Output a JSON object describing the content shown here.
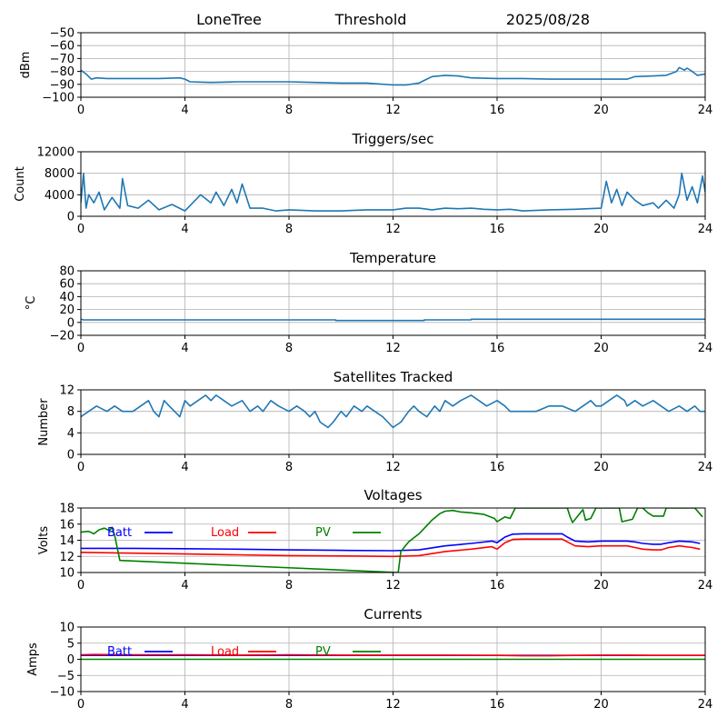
{
  "header": {
    "station": "LoneTree",
    "mode": "Threshold",
    "date": "2025/08/28"
  },
  "colors": {
    "series": "#1f77b4",
    "batt": "#0000ff",
    "load": "#ff0000",
    "pv": "#008000",
    "grid": "#b0b0b0",
    "axis": "#000000"
  },
  "chart_data": [
    {
      "type": "line",
      "title": "",
      "xlabel": "",
      "ylabel": "dBm",
      "xlim": [
        0,
        24
      ],
      "ylim": [
        -100,
        -50
      ],
      "xticks": [
        0,
        4,
        8,
        12,
        16,
        20,
        24
      ],
      "yticks": [
        -100,
        -90,
        -80,
        -70,
        -60,
        -50
      ],
      "grid": true,
      "series": [
        {
          "color": "#1f77b4",
          "x": [
            0,
            0.2,
            0.4,
            0.6,
            1,
            2,
            3,
            3.8,
            4,
            4.2,
            5,
            6,
            7,
            8,
            9,
            10,
            11,
            12,
            12.5,
            13,
            13.2,
            13.5,
            14,
            14.5,
            15,
            16,
            17,
            18,
            19,
            20,
            21,
            21.3,
            22,
            22.5,
            22.9,
            23,
            23.2,
            23.3,
            23.5,
            23.7,
            24
          ],
          "y": [
            -79,
            -82,
            -86,
            -85,
            -85.5,
            -85.5,
            -85.5,
            -85,
            -86,
            -88,
            -88.5,
            -88,
            -88,
            -88,
            -88.5,
            -89,
            -89,
            -90.5,
            -90.5,
            -89,
            -87,
            -84,
            -83,
            -83.5,
            -85,
            -85.5,
            -85.5,
            -86,
            -86,
            -86,
            -86,
            -84,
            -83.5,
            -83,
            -80,
            -77,
            -79,
            -77.5,
            -80,
            -83,
            -82
          ]
        }
      ]
    },
    {
      "type": "line",
      "title": "Triggers/sec",
      "xlabel": "",
      "ylabel": "Count",
      "xlim": [
        0,
        24
      ],
      "ylim": [
        0,
        12000
      ],
      "xticks": [
        0,
        4,
        8,
        12,
        16,
        20,
        24
      ],
      "yticks": [
        0,
        4000,
        8000,
        12000
      ],
      "grid": true,
      "series": [
        {
          "color": "#1f77b4",
          "x": [
            0,
            0.1,
            0.2,
            0.3,
            0.5,
            0.7,
            0.9,
            1.2,
            1.5,
            1.6,
            1.8,
            2.2,
            2.6,
            3,
            3.5,
            4,
            4.3,
            4.6,
            5,
            5.2,
            5.5,
            5.8,
            6,
            6.2,
            6.5,
            7,
            7.5,
            8,
            9,
            10,
            11,
            12,
            12.5,
            13,
            13.5,
            14,
            14.5,
            15,
            15.5,
            16,
            16.5,
            17,
            18,
            19,
            20,
            20.1,
            20.2,
            20.4,
            20.6,
            20.8,
            21,
            21.3,
            21.6,
            22,
            22.2,
            22.5,
            22.8,
            23,
            23.1,
            23.3,
            23.5,
            23.7,
            23.9,
            24
          ],
          "y": [
            2500,
            8000,
            1500,
            4000,
            2500,
            4500,
            1200,
            3500,
            1500,
            7000,
            2000,
            1500,
            3000,
            1200,
            2200,
            1000,
            2500,
            4000,
            2500,
            4500,
            2000,
            5000,
            2500,
            6000,
            1500,
            1500,
            1000,
            1200,
            1000,
            1000,
            1200,
            1200,
            1500,
            1500,
            1200,
            1500,
            1400,
            1500,
            1300,
            1200,
            1300,
            1000,
            1200,
            1300,
            1500,
            4000,
            6500,
            2500,
            5000,
            2000,
            4500,
            3000,
            2000,
            2500,
            1500,
            3000,
            1500,
            4000,
            8000,
            3000,
            5500,
            2500,
            7500,
            4500
          ]
        }
      ]
    },
    {
      "type": "line",
      "title": "Temperature",
      "xlabel": "",
      "ylabel": "°C",
      "xlim": [
        0,
        24
      ],
      "ylim": [
        -20,
        80
      ],
      "xticks": [
        0,
        4,
        8,
        12,
        16,
        20,
        24
      ],
      "yticks": [
        -20,
        0,
        20,
        40,
        60,
        80
      ],
      "grid": true,
      "series": [
        {
          "color": "#1f77b4",
          "x": [
            0,
            0.1,
            9.8,
            9.8,
            13.2,
            13.2,
            15,
            15,
            24
          ],
          "y": [
            5,
            4,
            4,
            3,
            3,
            4,
            4,
            5,
            5
          ]
        }
      ]
    },
    {
      "type": "line",
      "title": "Satellites Tracked",
      "xlabel": "",
      "ylabel": "Number",
      "xlim": [
        0,
        24
      ],
      "ylim": [
        0,
        12
      ],
      "xticks": [
        0,
        4,
        8,
        12,
        16,
        20,
        24
      ],
      "yticks": [
        0,
        4,
        8,
        12
      ],
      "grid": true,
      "series": [
        {
          "color": "#1f77b4",
          "x": [
            0,
            0.3,
            0.6,
            1,
            1.3,
            1.6,
            2,
            2.3,
            2.6,
            2.8,
            3,
            3.2,
            3.4,
            3.6,
            3.8,
            4,
            4.2,
            4.5,
            4.8,
            5,
            5.2,
            5.5,
            5.8,
            6.2,
            6.5,
            6.8,
            7,
            7.3,
            7.6,
            8,
            8.3,
            8.6,
            8.8,
            9,
            9.2,
            9.5,
            9.7,
            10,
            10.2,
            10.5,
            10.8,
            11,
            11.3,
            11.6,
            11.8,
            12,
            12.3,
            12.6,
            12.8,
            13,
            13.3,
            13.6,
            13.8,
            14,
            14.3,
            14.6,
            15,
            15.3,
            15.6,
            16,
            16.3,
            16.5,
            17,
            17.5,
            18,
            18.5,
            19,
            19.3,
            19.6,
            19.8,
            20,
            20.3,
            20.6,
            20.9,
            21,
            21.3,
            21.6,
            22,
            22.3,
            22.6,
            23,
            23.3,
            23.6,
            23.8,
            24
          ],
          "y": [
            7,
            8,
            9,
            8,
            9,
            8,
            8,
            9,
            10,
            8,
            7,
            10,
            9,
            8,
            7,
            10,
            9,
            10,
            11,
            10,
            11,
            10,
            9,
            10,
            8,
            9,
            8,
            10,
            9,
            8,
            9,
            8,
            7,
            8,
            6,
            5,
            6,
            8,
            7,
            9,
            8,
            9,
            8,
            7,
            6,
            5,
            6,
            8,
            9,
            8,
            7,
            9,
            8,
            10,
            9,
            10,
            11,
            10,
            9,
            10,
            9,
            8,
            8,
            8,
            9,
            9,
            8,
            9,
            10,
            9,
            9,
            10,
            11,
            10,
            9,
            10,
            9,
            10,
            9,
            8,
            9,
            8,
            9,
            8,
            8
          ]
        }
      ]
    },
    {
      "type": "line",
      "title": "Voltages",
      "xlabel": "",
      "ylabel": "Volts",
      "xlim": [
        0,
        24
      ],
      "ylim": [
        10,
        18
      ],
      "xticks": [
        0,
        4,
        8,
        12,
        16,
        20,
        24
      ],
      "yticks": [
        10,
        12,
        14,
        16,
        18
      ],
      "grid": true,
      "legend": "top-left",
      "series": [
        {
          "name": "Batt",
          "color": "#0000ff",
          "x": [
            0,
            2,
            4,
            6,
            8,
            10,
            12,
            13,
            14,
            15,
            15.8,
            16,
            16.3,
            16.6,
            17,
            18.5,
            18.7,
            19,
            19.5,
            20,
            21,
            21.3,
            21.6,
            22,
            22.3,
            22.6,
            23,
            23.5,
            23.8
          ],
          "y": [
            13.0,
            13.0,
            12.95,
            12.9,
            12.8,
            12.75,
            12.7,
            12.8,
            13.3,
            13.6,
            13.9,
            13.7,
            14.4,
            14.75,
            14.8,
            14.8,
            14.4,
            13.9,
            13.8,
            13.9,
            13.9,
            13.8,
            13.6,
            13.5,
            13.5,
            13.7,
            13.9,
            13.8,
            13.6
          ]
        },
        {
          "name": "Load",
          "color": "#ff0000",
          "x": [
            0,
            2,
            4,
            6,
            8,
            10,
            12,
            13,
            14,
            15,
            15.8,
            16,
            16.3,
            16.6,
            17,
            18.5,
            18.7,
            19,
            19.5,
            20,
            21,
            21.3,
            21.6,
            22,
            22.3,
            22.6,
            23,
            23.5,
            23.8
          ],
          "y": [
            12.5,
            12.4,
            12.3,
            12.2,
            12.1,
            12.05,
            12.0,
            12.1,
            12.6,
            12.9,
            13.2,
            12.9,
            13.7,
            14.1,
            14.15,
            14.15,
            13.8,
            13.3,
            13.2,
            13.3,
            13.3,
            13.1,
            12.9,
            12.8,
            12.8,
            13.1,
            13.3,
            13.1,
            12.9
          ]
        },
        {
          "name": "PV",
          "color": "#008000",
          "x": [
            0,
            0.3,
            0.5,
            0.7,
            0.9,
            1.1,
            1.2,
            1.3,
            1.5,
            12.2,
            12.3,
            12.6,
            13,
            13.5,
            13.8,
            14,
            14.3,
            14.6,
            15,
            15.5,
            15.9,
            16,
            16.3,
            16.5,
            16.7,
            18.7,
            18.8,
            18.9,
            19.3,
            19.4,
            19.6,
            19.8,
            20.7,
            20.8,
            21.2,
            21.4,
            21.6,
            21.8,
            22,
            22.4,
            22.5,
            22.7,
            23,
            23.5,
            23.6,
            23.9
          ],
          "y": [
            15.0,
            15.1,
            14.8,
            15.3,
            15.5,
            15.2,
            15.6,
            14.6,
            11.5,
            10,
            12.6,
            13.8,
            14.8,
            16.5,
            17.3,
            17.6,
            17.7,
            17.5,
            17.4,
            17.2,
            16.7,
            16.3,
            16.9,
            16.7,
            18,
            18,
            17.0,
            16.2,
            17.8,
            16.5,
            16.7,
            18,
            18,
            16.3,
            16.6,
            18,
            18,
            17.4,
            17.0,
            17.0,
            18,
            18,
            18,
            18,
            18,
            16.9
          ]
        }
      ]
    },
    {
      "type": "line",
      "title": "Currents",
      "xlabel": "",
      "ylabel": "Amps",
      "xlim": [
        0,
        24
      ],
      "ylim": [
        -10,
        10
      ],
      "xticks": [
        0,
        4,
        8,
        12,
        16,
        20,
        24
      ],
      "yticks": [
        -10,
        -5,
        0,
        5,
        10
      ],
      "grid": true,
      "legend": "top-left",
      "series": [
        {
          "name": "Batt",
          "color": "#0000ff",
          "x": [
            0,
            24
          ],
          "y": [
            1.2,
            1.2
          ]
        },
        {
          "name": "Load",
          "color": "#ff0000",
          "x": [
            0,
            0.5,
            2,
            4,
            6,
            8,
            10,
            12,
            14,
            16,
            17,
            18,
            19,
            20,
            21,
            22,
            23,
            24
          ],
          "y": [
            1.4,
            1.5,
            1.4,
            1.4,
            1.3,
            1.4,
            1.3,
            1.3,
            1.3,
            1.2,
            1.1,
            1.1,
            1.2,
            1.3,
            1.3,
            1.2,
            1.2,
            1.2
          ]
        },
        {
          "name": "PV",
          "color": "#008000",
          "x": [
            0,
            24
          ],
          "y": [
            0,
            0
          ]
        }
      ]
    }
  ]
}
